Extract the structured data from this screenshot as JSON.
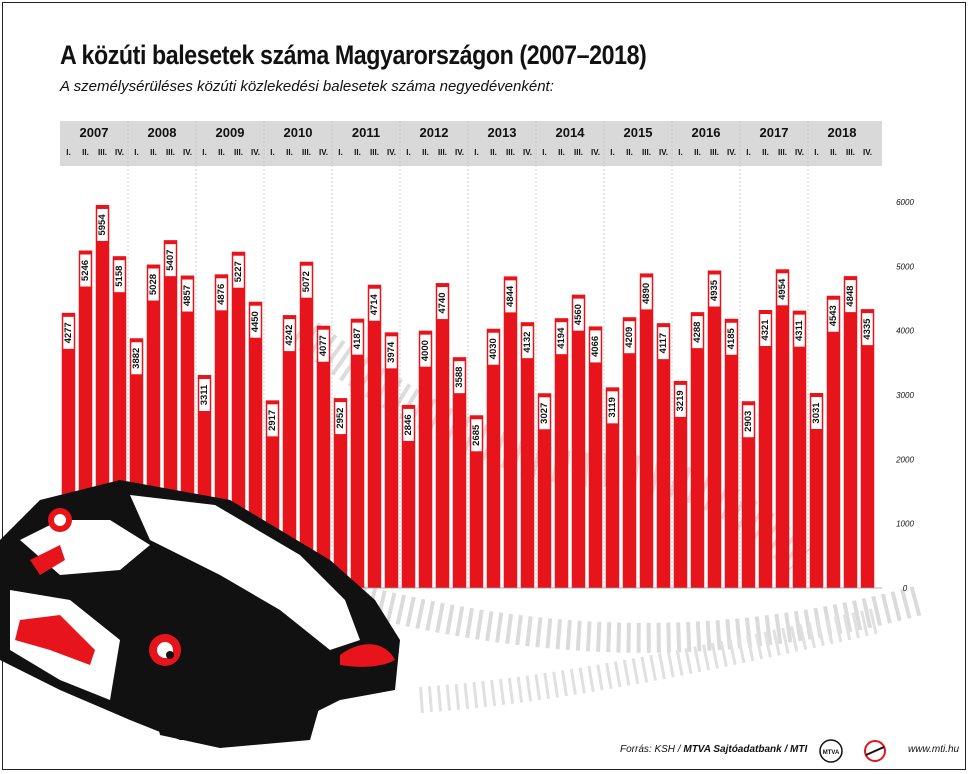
{
  "header": {
    "title": "A közúti balesetek száma Magyarországon (2007–2018)",
    "subtitle": "A személysérüléses közúti közlekedési balesetek száma negyedévenként:"
  },
  "footer": {
    "source_prefix": "Forrás: KSH / ",
    "source_bold": "MTVA Sajtóadatbank / MTI",
    "logo1_text": "MTVA",
    "site": "www.mti.hu"
  },
  "colors": {
    "bar": "#e8141c",
    "header_band": "#d9d9d9",
    "label_box": "#ffffff"
  },
  "chart_data": {
    "type": "bar",
    "years": [
      "2007",
      "2008",
      "2009",
      "2010",
      "2011",
      "2012",
      "2013",
      "2014",
      "2015",
      "2016",
      "2017",
      "2018"
    ],
    "quarters": [
      "I.",
      "II.",
      "III.",
      "IV."
    ],
    "values": [
      4277,
      5246,
      5954,
      5158,
      3882,
      5028,
      5407,
      4857,
      3311,
      4876,
      5227,
      4450,
      2917,
      4242,
      5072,
      4077,
      2952,
      4187,
      4714,
      3974,
      2846,
      4000,
      4740,
      3588,
      2685,
      4030,
      4844,
      4132,
      3027,
      4194,
      4560,
      4066,
      3119,
      4209,
      4890,
      4117,
      3219,
      4288,
      4935,
      4185,
      2903,
      4321,
      4954,
      4311,
      3031,
      4543,
      4848,
      4335
    ],
    "ylim": [
      0,
      6000
    ],
    "yticks": [
      0,
      1000,
      2000,
      3000,
      4000,
      5000,
      6000
    ],
    "grid": false,
    "legend": "none",
    "title": "A közúti balesetek száma Magyarországon (2007–2018)",
    "subtitle": "A személysérüléses közúti közlekedési balesetek száma negyedévenként:"
  }
}
